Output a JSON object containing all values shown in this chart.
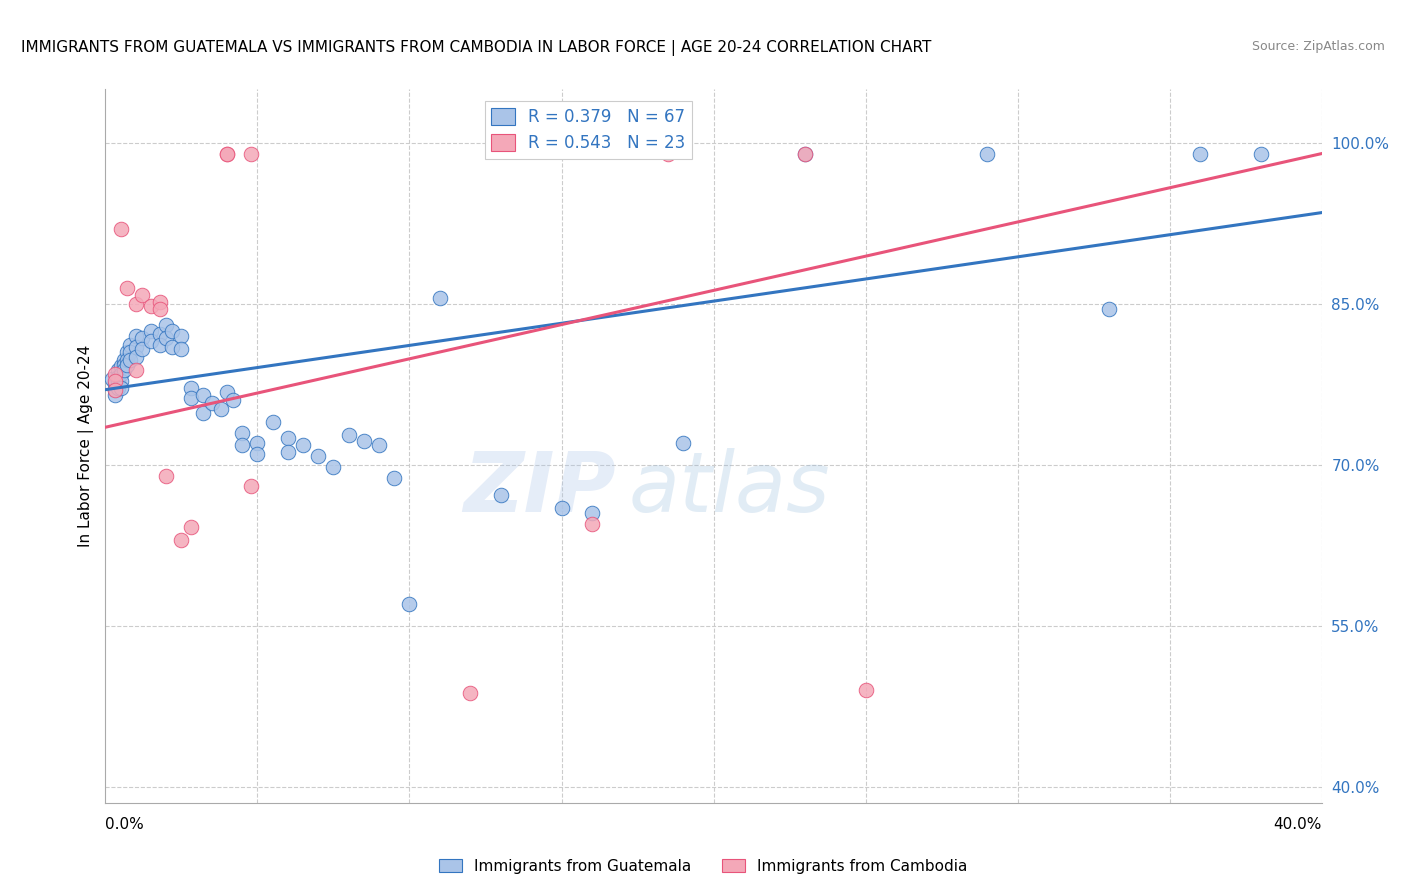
{
  "title": "IMMIGRANTS FROM GUATEMALA VS IMMIGRANTS FROM CAMBODIA IN LABOR FORCE | AGE 20-24 CORRELATION CHART",
  "source": "Source: ZipAtlas.com",
  "ylabel": "In Labor Force | Age 20-24",
  "right_yticks": [
    "100.0%",
    "85.0%",
    "70.0%",
    "55.0%",
    "40.0%"
  ],
  "right_ytick_vals": [
    1.0,
    0.85,
    0.7,
    0.55,
    0.4
  ],
  "xlim": [
    0.0,
    0.4
  ],
  "ylim": [
    0.385,
    1.05
  ],
  "label1": "Immigrants from Guatemala",
  "label2": "Immigrants from Cambodia",
  "color1": "#aac4e8",
  "color2": "#f4a8b8",
  "line_color1": "#3375c0",
  "line_color2": "#e8547a",
  "legend_text_color": "#3375c0",
  "watermark_zip": "ZIP",
  "watermark_atlas": "atlas",
  "gridline_y": [
    1.0,
    0.85,
    0.7,
    0.55,
    0.4
  ],
  "gridline_x": [
    0.0,
    0.05,
    0.1,
    0.15,
    0.2,
    0.25,
    0.3,
    0.35,
    0.4
  ],
  "scatter_blue": [
    [
      0.002,
      0.78
    ],
    [
      0.003,
      0.775
    ],
    [
      0.003,
      0.77
    ],
    [
      0.003,
      0.765
    ],
    [
      0.004,
      0.788
    ],
    [
      0.004,
      0.782
    ],
    [
      0.004,
      0.778
    ],
    [
      0.004,
      0.772
    ],
    [
      0.005,
      0.792
    ],
    [
      0.005,
      0.785
    ],
    [
      0.005,
      0.778
    ],
    [
      0.005,
      0.772
    ],
    [
      0.006,
      0.798
    ],
    [
      0.006,
      0.793
    ],
    [
      0.006,
      0.788
    ],
    [
      0.007,
      0.805
    ],
    [
      0.007,
      0.798
    ],
    [
      0.007,
      0.793
    ],
    [
      0.008,
      0.812
    ],
    [
      0.008,
      0.805
    ],
    [
      0.008,
      0.798
    ],
    [
      0.01,
      0.82
    ],
    [
      0.01,
      0.81
    ],
    [
      0.01,
      0.8
    ],
    [
      0.012,
      0.818
    ],
    [
      0.012,
      0.808
    ],
    [
      0.015,
      0.825
    ],
    [
      0.015,
      0.815
    ],
    [
      0.018,
      0.822
    ],
    [
      0.018,
      0.812
    ],
    [
      0.02,
      0.83
    ],
    [
      0.02,
      0.818
    ],
    [
      0.022,
      0.825
    ],
    [
      0.022,
      0.81
    ],
    [
      0.025,
      0.82
    ],
    [
      0.025,
      0.808
    ],
    [
      0.028,
      0.772
    ],
    [
      0.028,
      0.762
    ],
    [
      0.032,
      0.765
    ],
    [
      0.032,
      0.748
    ],
    [
      0.035,
      0.758
    ],
    [
      0.038,
      0.752
    ],
    [
      0.04,
      0.768
    ],
    [
      0.042,
      0.76
    ],
    [
      0.045,
      0.73
    ],
    [
      0.045,
      0.718
    ],
    [
      0.05,
      0.72
    ],
    [
      0.05,
      0.71
    ],
    [
      0.055,
      0.74
    ],
    [
      0.06,
      0.725
    ],
    [
      0.06,
      0.712
    ],
    [
      0.065,
      0.718
    ],
    [
      0.07,
      0.708
    ],
    [
      0.075,
      0.698
    ],
    [
      0.08,
      0.728
    ],
    [
      0.085,
      0.722
    ],
    [
      0.09,
      0.718
    ],
    [
      0.095,
      0.688
    ],
    [
      0.1,
      0.57
    ],
    [
      0.11,
      0.855
    ],
    [
      0.13,
      0.672
    ],
    [
      0.15,
      0.66
    ],
    [
      0.16,
      0.655
    ],
    [
      0.19,
      0.72
    ],
    [
      0.23,
      0.99
    ],
    [
      0.29,
      0.99
    ],
    [
      0.33,
      0.845
    ],
    [
      0.36,
      0.99
    ],
    [
      0.38,
      0.99
    ]
  ],
  "scatter_pink": [
    [
      0.003,
      0.785
    ],
    [
      0.003,
      0.778
    ],
    [
      0.003,
      0.77
    ],
    [
      0.005,
      0.92
    ],
    [
      0.007,
      0.865
    ],
    [
      0.01,
      0.85
    ],
    [
      0.01,
      0.788
    ],
    [
      0.012,
      0.858
    ],
    [
      0.015,
      0.848
    ],
    [
      0.018,
      0.852
    ],
    [
      0.018,
      0.845
    ],
    [
      0.02,
      0.69
    ],
    [
      0.025,
      0.63
    ],
    [
      0.028,
      0.642
    ],
    [
      0.04,
      0.99
    ],
    [
      0.04,
      0.99
    ],
    [
      0.048,
      0.99
    ],
    [
      0.048,
      0.68
    ],
    [
      0.12,
      0.487
    ],
    [
      0.16,
      0.645
    ],
    [
      0.185,
      0.99
    ],
    [
      0.23,
      0.99
    ],
    [
      0.25,
      0.49
    ]
  ],
  "blue_line_x0": 0.0,
  "blue_line_y0": 0.77,
  "blue_line_x1": 0.4,
  "blue_line_y1": 0.935,
  "pink_line_x0": 0.0,
  "pink_line_y0": 0.735,
  "pink_line_x1": 0.4,
  "pink_line_y1": 0.99
}
